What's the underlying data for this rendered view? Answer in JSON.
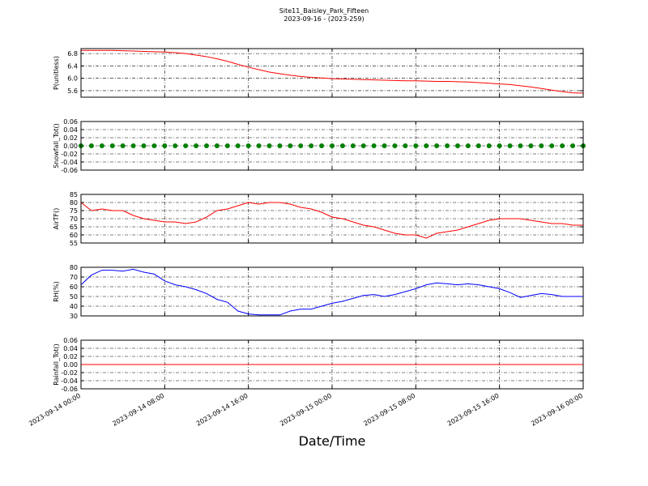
{
  "chart_data": [
    {
      "type": "line",
      "title": "Site11_Baisley_Park_Fifteen",
      "subtitle": "2023-09-16 - (2023-259)",
      "ylabel": "P(unitless)",
      "color": "#ff0000",
      "grid": true,
      "x": [
        "2023-09-14 00:00",
        "2023-09-14 01:00",
        "2023-09-14 02:00",
        "2023-09-14 03:00",
        "2023-09-14 04:00",
        "2023-09-14 05:00",
        "2023-09-14 06:00",
        "2023-09-14 07:00",
        "2023-09-14 08:00",
        "2023-09-14 09:00",
        "2023-09-14 10:00",
        "2023-09-14 11:00",
        "2023-09-14 12:00",
        "2023-09-14 13:00",
        "2023-09-14 14:00",
        "2023-09-14 15:00",
        "2023-09-14 16:00",
        "2023-09-14 17:00",
        "2023-09-14 18:00",
        "2023-09-14 19:00",
        "2023-09-14 20:00",
        "2023-09-14 21:00",
        "2023-09-14 22:00",
        "2023-09-14 23:00",
        "2023-09-15 00:00",
        "2023-09-15 01:00",
        "2023-09-15 02:00",
        "2023-09-15 03:00",
        "2023-09-15 04:00",
        "2023-09-15 05:00",
        "2023-09-15 06:00",
        "2023-09-15 07:00",
        "2023-09-15 08:00",
        "2023-09-15 09:00",
        "2023-09-15 10:00",
        "2023-09-15 11:00",
        "2023-09-15 12:00",
        "2023-09-15 13:00",
        "2023-09-15 14:00",
        "2023-09-15 15:00",
        "2023-09-15 16:00",
        "2023-09-15 17:00",
        "2023-09-15 18:00",
        "2023-09-15 19:00",
        "2023-09-15 20:00",
        "2023-09-15 21:00",
        "2023-09-15 22:00",
        "2023-09-15 23:00",
        "2023-09-16 00:00"
      ],
      "values": [
        6.9,
        6.9,
        6.9,
        6.9,
        6.89,
        6.88,
        6.87,
        6.86,
        6.85,
        6.83,
        6.8,
        6.75,
        6.7,
        6.63,
        6.55,
        6.45,
        6.36,
        6.28,
        6.2,
        6.15,
        6.1,
        6.06,
        6.03,
        6.01,
        5.99,
        5.98,
        5.97,
        5.96,
        5.95,
        5.94,
        5.93,
        5.92,
        5.92,
        5.91,
        5.9,
        5.9,
        5.89,
        5.88,
        5.86,
        5.84,
        5.82,
        5.8,
        5.76,
        5.72,
        5.67,
        5.62,
        5.57,
        5.53,
        5.52
      ],
      "xlim": [
        "2023-09-14 00:00",
        "2023-09-16 00:00"
      ],
      "xticks": [
        "2023-09-14 00:00",
        "2023-09-14 08:00",
        "2023-09-14 16:00",
        "2023-09-15 00:00",
        "2023-09-15 08:00",
        "2023-09-15 16:00",
        "2023-09-16 00:00"
      ],
      "ylim": [
        5.39,
        6.96
      ],
      "yticks": [
        5.6,
        {
          "value": 6,
          "label": "6.0"
        },
        6.4,
        6.8
      ]
    },
    {
      "type": "scatter",
      "ylabel": "Snowfall_Tot()",
      "color": "#008000",
      "grid": true,
      "x": [
        "2023-09-14 00:00",
        "2023-09-14 01:00",
        "2023-09-14 02:00",
        "2023-09-14 03:00",
        "2023-09-14 04:00",
        "2023-09-14 05:00",
        "2023-09-14 06:00",
        "2023-09-14 07:00",
        "2023-09-14 08:00",
        "2023-09-14 09:00",
        "2023-09-14 10:00",
        "2023-09-14 11:00",
        "2023-09-14 12:00",
        "2023-09-14 13:00",
        "2023-09-14 14:00",
        "2023-09-14 15:00",
        "2023-09-14 16:00",
        "2023-09-14 17:00",
        "2023-09-14 18:00",
        "2023-09-14 19:00",
        "2023-09-14 20:00",
        "2023-09-14 21:00",
        "2023-09-14 22:00",
        "2023-09-14 23:00",
        "2023-09-15 00:00",
        "2023-09-15 01:00",
        "2023-09-15 02:00",
        "2023-09-15 03:00",
        "2023-09-15 04:00",
        "2023-09-15 05:00",
        "2023-09-15 06:00",
        "2023-09-15 07:00",
        "2023-09-15 08:00",
        "2023-09-15 09:00",
        "2023-09-15 10:00",
        "2023-09-15 11:00",
        "2023-09-15 12:00",
        "2023-09-15 13:00",
        "2023-09-15 14:00",
        "2023-09-15 15:00",
        "2023-09-15 16:00",
        "2023-09-15 17:00",
        "2023-09-15 18:00",
        "2023-09-15 19:00",
        "2023-09-15 20:00",
        "2023-09-15 21:00",
        "2023-09-15 22:00",
        "2023-09-15 23:00",
        "2023-09-16 00:00"
      ],
      "values": [
        0,
        0,
        0,
        0,
        0,
        0,
        0,
        0,
        0,
        0,
        0,
        0,
        0,
        0,
        0,
        0,
        0,
        0,
        0,
        0,
        0,
        0,
        0,
        0,
        0,
        0,
        0,
        0,
        0,
        0,
        0,
        0,
        0,
        0,
        0,
        0,
        0,
        0,
        0,
        0,
        0,
        0,
        0,
        0,
        0,
        0,
        0,
        0,
        0
      ],
      "xlim": [
        "2023-09-14 00:00",
        "2023-09-16 00:00"
      ],
      "xticks": [
        "2023-09-14 00:00",
        "2023-09-14 08:00",
        "2023-09-14 16:00",
        "2023-09-15 00:00",
        "2023-09-15 08:00",
        "2023-09-15 16:00",
        "2023-09-16 00:00"
      ],
      "ylim": [
        -0.06,
        0.06
      ],
      "yticks": [
        -0.06,
        -0.04,
        -0.02,
        {
          "value": 0,
          "label": "0.00"
        },
        0.02,
        0.04,
        0.06
      ]
    },
    {
      "type": "line",
      "ylabel": "AirTF()",
      "color": "#ff0000",
      "grid": true,
      "x": [
        "2023-09-14 00:00",
        "2023-09-14 01:00",
        "2023-09-14 02:00",
        "2023-09-14 03:00",
        "2023-09-14 04:00",
        "2023-09-14 05:00",
        "2023-09-14 06:00",
        "2023-09-14 07:00",
        "2023-09-14 08:00",
        "2023-09-14 09:00",
        "2023-09-14 10:00",
        "2023-09-14 11:00",
        "2023-09-14 12:00",
        "2023-09-14 13:00",
        "2023-09-14 14:00",
        "2023-09-14 15:00",
        "2023-09-14 16:00",
        "2023-09-14 17:00",
        "2023-09-14 18:00",
        "2023-09-14 19:00",
        "2023-09-14 20:00",
        "2023-09-14 21:00",
        "2023-09-14 22:00",
        "2023-09-14 23:00",
        "2023-09-15 00:00",
        "2023-09-15 01:00",
        "2023-09-15 02:00",
        "2023-09-15 03:00",
        "2023-09-15 04:00",
        "2023-09-15 05:00",
        "2023-09-15 06:00",
        "2023-09-15 07:00",
        "2023-09-15 08:00",
        "2023-09-15 09:00",
        "2023-09-15 10:00",
        "2023-09-15 11:00",
        "2023-09-15 12:00",
        "2023-09-15 13:00",
        "2023-09-15 14:00",
        "2023-09-15 15:00",
        "2023-09-15 16:00",
        "2023-09-15 17:00",
        "2023-09-15 18:00",
        "2023-09-15 19:00",
        "2023-09-15 20:00",
        "2023-09-15 21:00",
        "2023-09-15 22:00",
        "2023-09-15 23:00",
        "2023-09-16 00:00"
      ],
      "values": [
        80,
        75,
        76,
        75,
        75,
        72,
        70,
        69,
        68,
        68,
        67,
        68,
        71,
        75,
        76,
        78,
        80,
        79,
        80,
        80,
        79,
        77,
        76,
        74,
        71,
        70,
        68,
        66,
        65,
        63,
        61,
        60,
        60,
        58,
        61,
        62,
        63,
        65,
        67,
        69,
        70,
        70,
        70,
        69,
        68,
        67,
        67,
        66,
        66
      ],
      "xlim": [
        "2023-09-14 00:00",
        "2023-09-16 00:00"
      ],
      "xticks": [
        "2023-09-14 00:00",
        "2023-09-14 08:00",
        "2023-09-14 16:00",
        "2023-09-15 00:00",
        "2023-09-15 08:00",
        "2023-09-15 16:00",
        "2023-09-16 00:00"
      ],
      "ylim": [
        55,
        85
      ],
      "yticks": [
        55,
        60,
        65,
        70,
        75,
        80,
        85
      ]
    },
    {
      "type": "line",
      "ylabel": "RH(%)",
      "color": "#0000ff",
      "grid": true,
      "x": [
        "2023-09-14 00:00",
        "2023-09-14 01:00",
        "2023-09-14 02:00",
        "2023-09-14 03:00",
        "2023-09-14 04:00",
        "2023-09-14 05:00",
        "2023-09-14 06:00",
        "2023-09-14 07:00",
        "2023-09-14 08:00",
        "2023-09-14 09:00",
        "2023-09-14 10:00",
        "2023-09-14 11:00",
        "2023-09-14 12:00",
        "2023-09-14 13:00",
        "2023-09-14 14:00",
        "2023-09-14 15:00",
        "2023-09-14 16:00",
        "2023-09-14 17:00",
        "2023-09-14 18:00",
        "2023-09-14 19:00",
        "2023-09-14 20:00",
        "2023-09-14 21:00",
        "2023-09-14 22:00",
        "2023-09-14 23:00",
        "2023-09-15 00:00",
        "2023-09-15 01:00",
        "2023-09-15 02:00",
        "2023-09-15 03:00",
        "2023-09-15 04:00",
        "2023-09-15 05:00",
        "2023-09-15 06:00",
        "2023-09-15 07:00",
        "2023-09-15 08:00",
        "2023-09-15 09:00",
        "2023-09-15 10:00",
        "2023-09-15 11:00",
        "2023-09-15 12:00",
        "2023-09-15 13:00",
        "2023-09-15 14:00",
        "2023-09-15 15:00",
        "2023-09-15 16:00",
        "2023-09-15 17:00",
        "2023-09-15 18:00",
        "2023-09-15 19:00",
        "2023-09-15 20:00",
        "2023-09-15 21:00",
        "2023-09-15 22:00",
        "2023-09-15 23:00",
        "2023-09-16 00:00"
      ],
      "values": [
        62,
        72,
        77,
        77,
        76,
        78,
        75,
        73,
        66,
        62,
        60,
        57,
        53,
        47,
        44,
        35,
        32,
        31,
        31,
        31,
        35,
        37,
        37,
        40,
        43,
        45,
        48,
        51,
        52,
        50,
        52,
        55,
        58,
        62,
        64,
        63,
        62,
        63,
        62,
        60,
        58,
        54,
        49,
        51,
        53,
        52,
        50,
        50,
        50
      ],
      "xlim": [
        "2023-09-14 00:00",
        "2023-09-16 00:00"
      ],
      "xticks": [
        "2023-09-14 00:00",
        "2023-09-14 08:00",
        "2023-09-14 16:00",
        "2023-09-15 00:00",
        "2023-09-15 08:00",
        "2023-09-15 16:00",
        "2023-09-16 00:00"
      ],
      "ylim": [
        30,
        80
      ],
      "yticks": [
        30,
        40,
        50,
        60,
        70,
        80
      ]
    },
    {
      "type": "line",
      "ylabel": "Rainfall_Tot()",
      "xlabel": "Date/Time",
      "color": "#ff0000",
      "grid": true,
      "x": [
        "2023-09-14 00:00",
        "2023-09-14 01:00",
        "2023-09-14 02:00",
        "2023-09-14 03:00",
        "2023-09-14 04:00",
        "2023-09-14 05:00",
        "2023-09-14 06:00",
        "2023-09-14 07:00",
        "2023-09-14 08:00",
        "2023-09-14 09:00",
        "2023-09-14 10:00",
        "2023-09-14 11:00",
        "2023-09-14 12:00",
        "2023-09-14 13:00",
        "2023-09-14 14:00",
        "2023-09-14 15:00",
        "2023-09-14 16:00",
        "2023-09-14 17:00",
        "2023-09-14 18:00",
        "2023-09-14 19:00",
        "2023-09-14 20:00",
        "2023-09-14 21:00",
        "2023-09-14 22:00",
        "2023-09-14 23:00",
        "2023-09-15 00:00",
        "2023-09-15 01:00",
        "2023-09-15 02:00",
        "2023-09-15 03:00",
        "2023-09-15 04:00",
        "2023-09-15 05:00",
        "2023-09-15 06:00",
        "2023-09-15 07:00",
        "2023-09-15 08:00",
        "2023-09-15 09:00",
        "2023-09-15 10:00",
        "2023-09-15 11:00",
        "2023-09-15 12:00",
        "2023-09-15 13:00",
        "2023-09-15 14:00",
        "2023-09-15 15:00",
        "2023-09-15 16:00",
        "2023-09-15 17:00",
        "2023-09-15 18:00",
        "2023-09-15 19:00",
        "2023-09-15 20:00",
        "2023-09-15 21:00",
        "2023-09-15 22:00",
        "2023-09-15 23:00",
        "2023-09-16 00:00"
      ],
      "values": [
        0,
        0,
        0,
        0,
        0,
        0,
        0,
        0,
        0,
        0,
        0,
        0,
        0,
        0,
        0,
        0,
        0,
        0,
        0,
        0,
        0,
        0,
        0,
        0,
        0,
        0,
        0,
        0,
        0,
        0,
        0,
        0,
        0,
        0,
        0,
        0,
        0,
        0,
        0,
        0,
        0,
        0,
        0,
        0,
        0,
        0,
        0,
        0,
        0
      ],
      "xlim": [
        "2023-09-14 00:00",
        "2023-09-16 00:00"
      ],
      "xticks": [
        "2023-09-14 00:00",
        "2023-09-14 08:00",
        "2023-09-14 16:00",
        "2023-09-15 00:00",
        "2023-09-15 08:00",
        "2023-09-15 16:00",
        "2023-09-16 00:00"
      ],
      "ylim": [
        -0.06,
        0.06
      ],
      "yticks": [
        -0.06,
        -0.04,
        -0.02,
        {
          "value": 0,
          "label": "0.00"
        },
        0.02,
        0.04,
        0.06
      ]
    }
  ]
}
